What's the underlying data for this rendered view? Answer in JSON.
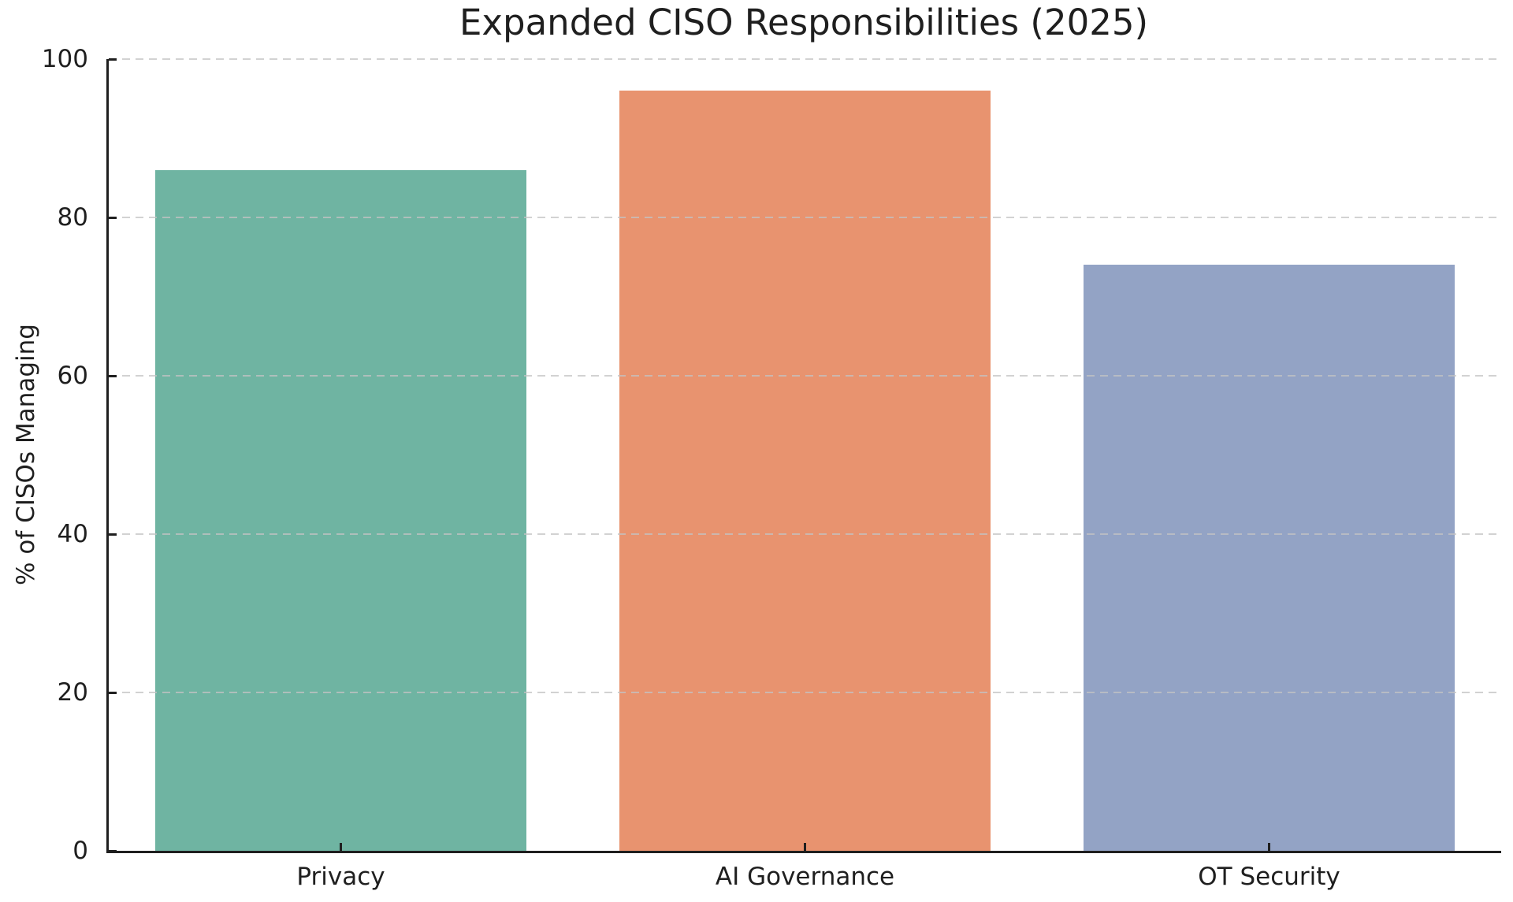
{
  "chart_data": {
    "type": "bar",
    "title": "Expanded CISO Responsibilities (2025)",
    "categories": [
      "Privacy",
      "AI Governance",
      "OT Security"
    ],
    "values": [
      86,
      96,
      74
    ],
    "xlabel": "",
    "ylabel": "% of CISOs Managing",
    "ylim": [
      0,
      100
    ],
    "yticks": [
      0,
      20,
      40,
      60,
      80,
      100
    ],
    "grid": {
      "axis": "y",
      "style": "dashed",
      "color": "#c3c3c3",
      "above_bars": true
    },
    "legend_position": "none",
    "bar_colors": [
      "#6fb4a2",
      "#e8936f",
      "#93a3c5"
    ],
    "bar_width_fraction": 0.8,
    "axis_color": "#1f1f1f",
    "background_color": "#ffffff",
    "tick_direction": "in",
    "visible_spines": [
      "left",
      "bottom"
    ]
  }
}
